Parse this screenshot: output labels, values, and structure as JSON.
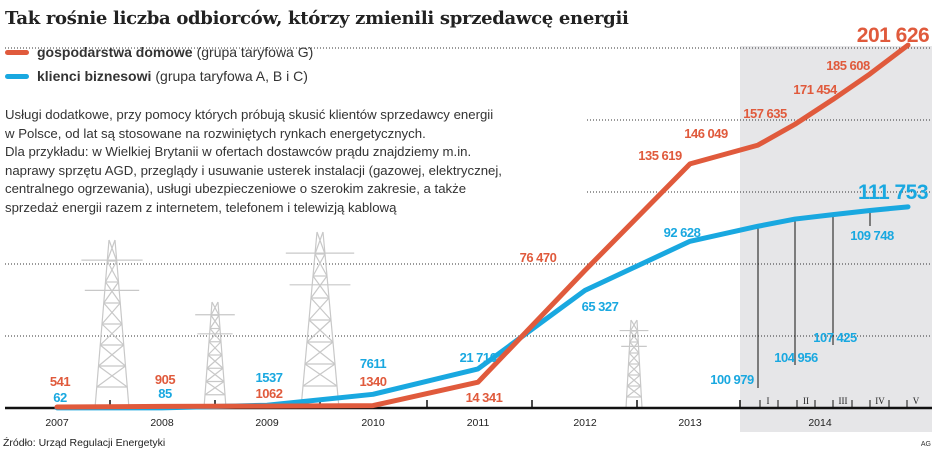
{
  "title": "Tak rośnie liczba odbiorców, którzy zmienili sprzedawcę energii",
  "legend": [
    {
      "bold": "gospodarstwa domowe",
      "rest": "(grupa taryfowa G)",
      "color": "#e05a3c"
    },
    {
      "bold": "klienci biznesowi",
      "rest": "(grupa taryfowa A, B i C)",
      "color": "#19a8e0"
    }
  ],
  "description": [
    "Usługi dodatkowe, przy pomocy których próbują skusić klientów sprzedawcy energii",
    "w Polsce, od lat są stosowane na rozwiniętych rynkach energetycznych.",
    "Dla przykładu: w Wielkiej Brytanii w ofertach dostawców prądu znajdziemy m.in.",
    "naprawy sprzętu AGD, przeglądy i usuwanie usterek instalacji (gazowej, elektrycznej,",
    "centralnego ogrzewania), usługi ubezpieczeniowe o szerokim zakresie, a także",
    "sprzedaż energii razem z internetem, telefonem i telewizją kablową"
  ],
  "source": "Źródło: Urząd Regulacji Energetyki",
  "credit": "AG",
  "chart_data": {
    "type": "line",
    "title": "Tak rośnie liczba odbiorców, którzy zmienili sprzedawcę energii",
    "x": [
      "2007",
      "2008",
      "2009",
      "2010",
      "2011",
      "2012",
      "2013",
      "2014 I",
      "2014 II",
      "2014 III",
      "2014 IV",
      "2014 V"
    ],
    "year_labels": [
      "2007",
      "2008",
      "2009",
      "2010",
      "2011",
      "2012",
      "2013",
      "2014"
    ],
    "month_labels": [
      "I",
      "II",
      "III",
      "IV",
      "V"
    ],
    "series": [
      {
        "name": "gospodarstwa domowe (grupa taryfowa G)",
        "color": "#e05a3c",
        "values": [
          541,
          905,
          1062,
          1340,
          14341,
          76470,
          135619,
          146049,
          157635,
          171454,
          185608,
          201626
        ],
        "labels": [
          "541",
          "905",
          "1062",
          "1340",
          "14 341",
          "76 470",
          "135 619",
          "146 049",
          "157 635",
          "171 454",
          "185 608",
          "201 626"
        ]
      },
      {
        "name": "klienci biznesowi (grupa taryfowa A, B i C)",
        "color": "#19a8e0",
        "values": [
          62,
          85,
          1537,
          7611,
          21716,
          65327,
          92628,
          100979,
          104956,
          107425,
          109748,
          111753
        ],
        "labels": [
          "62",
          "85",
          "1537",
          "7611",
          "21 716",
          "65 327",
          "92 628",
          "100 979",
          "104 956",
          "107 425",
          "109 748",
          "111 753"
        ]
      }
    ],
    "ylim": [
      0,
      200000
    ],
    "grid": true,
    "highlight": "2014"
  }
}
